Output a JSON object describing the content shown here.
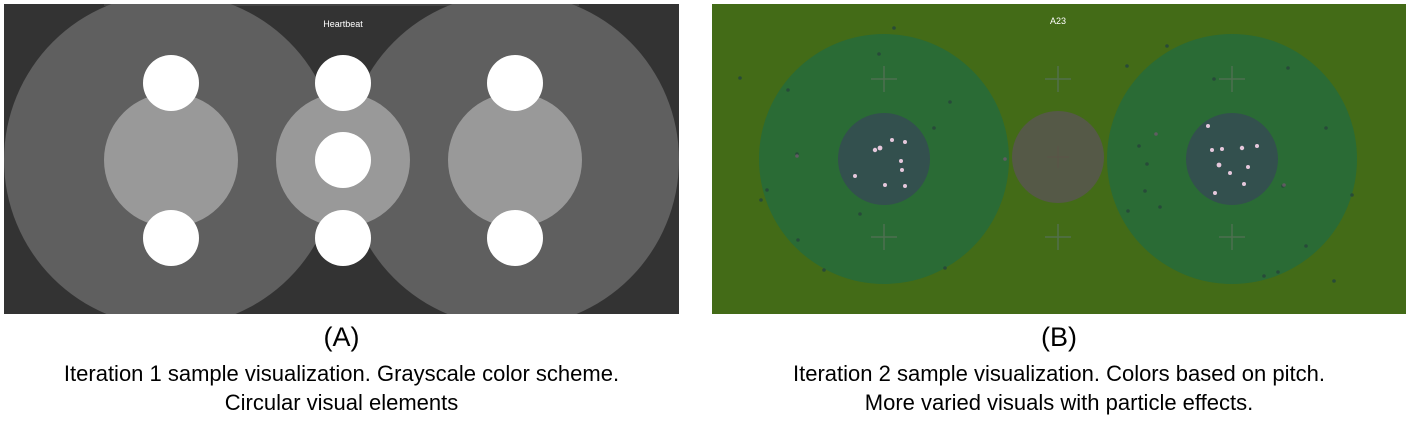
{
  "panel_a": {
    "letter": "(A)",
    "screen_title": "Heartbeat",
    "caption_line1": "Iteration 1 sample visualization. Grayscale color scheme.",
    "caption_line2": "Circular visual elements",
    "colors": {
      "background": "#333333",
      "outer_circle": "#5f5f5f",
      "inner_circle": "#999999",
      "dot": "#ffffff"
    }
  },
  "panel_b": {
    "letter": "(B)",
    "screen_title": "A23",
    "caption_line1": "Iteration 2 sample visualization. Colors based on pitch.",
    "caption_line2": "More varied visuals with particle effects.",
    "colors": {
      "background": "#436b17",
      "outer_circle": "#2a6b35",
      "inner_circle": "#33504e",
      "center_circle": "#555947",
      "particle": "#e6c8dc"
    }
  }
}
